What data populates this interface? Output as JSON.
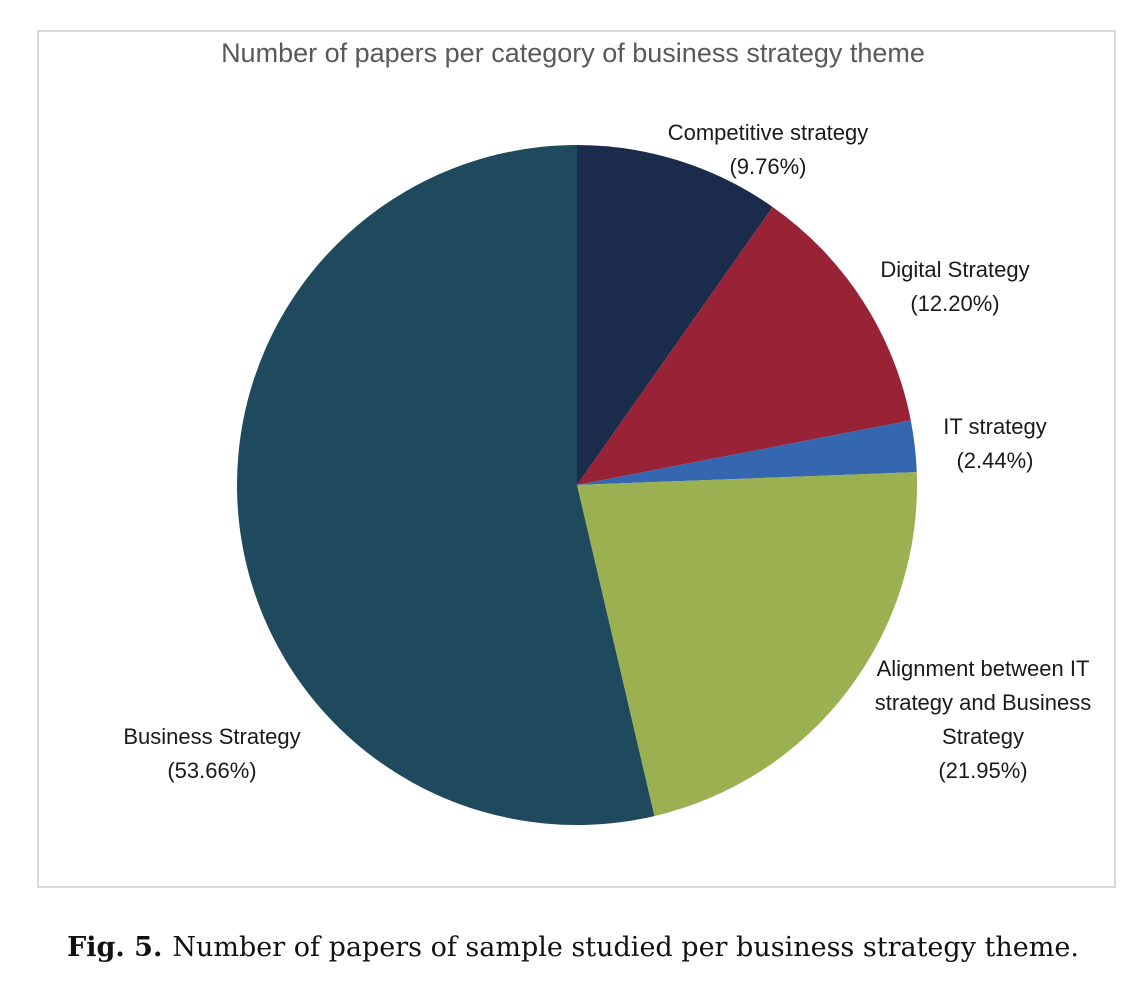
{
  "chart_data": {
    "type": "pie",
    "title": "Number of papers per category of business strategy theme",
    "categories": [
      "Competitive strategy",
      "Digital Strategy",
      "IT strategy",
      "Alignment between IT strategy and Business Strategy",
      "Business Strategy"
    ],
    "values": [
      9.76,
      12.2,
      2.44,
      21.95,
      53.66
    ],
    "value_labels": [
      "(9.76%)",
      "(12.20%)",
      "(2.44%)",
      "(21.95%)",
      "(53.66%)"
    ],
    "colors": [
      "#1b2b4b",
      "#982337",
      "#3566b0",
      "#9bb050",
      "#1f495d"
    ]
  },
  "caption": {
    "label": "Fig. 5.",
    "text": "Number of papers of sample studied per business strategy theme."
  }
}
